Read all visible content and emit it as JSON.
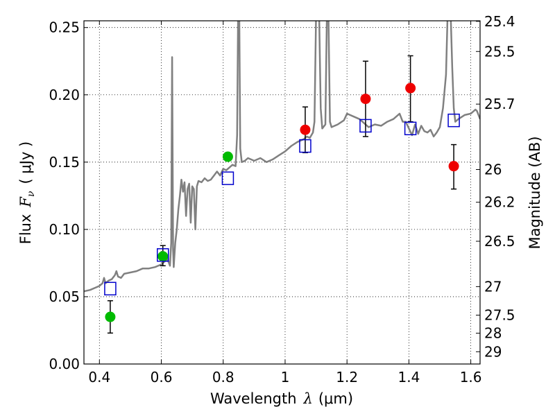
{
  "chart_data": {
    "type": "scatter",
    "xlabel_text": "Wavelength",
    "xlabel_symbol": "λ",
    "xlabel_unit": "(μm)",
    "ylabel_text": "Flux",
    "ylabel_symbol": "F",
    "ylabel_sub": "ν",
    "ylabel_unit": "( μJy )",
    "y2label": "Magnitude (AB)",
    "xlim": [
      0.35,
      1.63
    ],
    "ylim": [
      0.0,
      0.255
    ],
    "xticks": [
      {
        "value": 0.4,
        "label": "0.4"
      },
      {
        "value": 0.6,
        "label": "0.6"
      },
      {
        "value": 0.8,
        "label": "0.8"
      },
      {
        "value": 1.0,
        "label": "1"
      },
      {
        "value": 1.2,
        "label": "1.2"
      },
      {
        "value": 1.4,
        "label": "1.4"
      },
      {
        "value": 1.6,
        "label": "1.6"
      }
    ],
    "yticks": [
      {
        "value": 0.0,
        "label": "0.00"
      },
      {
        "value": 0.05,
        "label": "0.05"
      },
      {
        "value": 0.1,
        "label": "0.10"
      },
      {
        "value": 0.15,
        "label": "0.15"
      },
      {
        "value": 0.2,
        "label": "0.20"
      },
      {
        "value": 0.25,
        "label": "0.25"
      }
    ],
    "y2ticks": [
      {
        "flux": 0.2546,
        "label": "25.4"
      },
      {
        "flux": 0.2322,
        "label": "25.5"
      },
      {
        "flux": 0.1931,
        "label": "25.7"
      },
      {
        "flux": 0.1445,
        "label": "26"
      },
      {
        "flux": 0.1202,
        "label": "26.2"
      },
      {
        "flux": 0.0912,
        "label": "26.5"
      },
      {
        "flux": 0.0575,
        "label": "27"
      },
      {
        "flux": 0.0363,
        "label": "27.5"
      },
      {
        "flux": 0.0229,
        "label": "28"
      },
      {
        "flux": 0.0091,
        "label": "29"
      }
    ],
    "colors": {
      "spectrum": "#808080",
      "green": "#00bb00",
      "red": "#ee0000",
      "model": "#0000cc",
      "error": "#000000"
    },
    "spectrum": [
      [
        0.35,
        0.054
      ],
      [
        0.37,
        0.055
      ],
      [
        0.39,
        0.057
      ],
      [
        0.4,
        0.058
      ],
      [
        0.41,
        0.06
      ],
      [
        0.415,
        0.064
      ],
      [
        0.42,
        0.06
      ],
      [
        0.43,
        0.062
      ],
      [
        0.44,
        0.063
      ],
      [
        0.45,
        0.066
      ],
      [
        0.455,
        0.069
      ],
      [
        0.46,
        0.065
      ],
      [
        0.47,
        0.064
      ],
      [
        0.48,
        0.067
      ],
      [
        0.5,
        0.068
      ],
      [
        0.52,
        0.069
      ],
      [
        0.54,
        0.071
      ],
      [
        0.56,
        0.071
      ],
      [
        0.58,
        0.072
      ],
      [
        0.6,
        0.074
      ],
      [
        0.62,
        0.078
      ],
      [
        0.628,
        0.073
      ],
      [
        0.632,
        0.09
      ],
      [
        0.635,
        0.228
      ],
      [
        0.638,
        0.085
      ],
      [
        0.64,
        0.072
      ],
      [
        0.645,
        0.09
      ],
      [
        0.65,
        0.1
      ],
      [
        0.655,
        0.115
      ],
      [
        0.66,
        0.125
      ],
      [
        0.665,
        0.137
      ],
      [
        0.67,
        0.128
      ],
      [
        0.675,
        0.135
      ],
      [
        0.68,
        0.11
      ],
      [
        0.685,
        0.13
      ],
      [
        0.69,
        0.134
      ],
      [
        0.695,
        0.105
      ],
      [
        0.7,
        0.132
      ],
      [
        0.705,
        0.13
      ],
      [
        0.71,
        0.1
      ],
      [
        0.715,
        0.132
      ],
      [
        0.72,
        0.136
      ],
      [
        0.73,
        0.135
      ],
      [
        0.74,
        0.138
      ],
      [
        0.75,
        0.136
      ],
      [
        0.76,
        0.137
      ],
      [
        0.77,
        0.14
      ],
      [
        0.78,
        0.143
      ],
      [
        0.79,
        0.14
      ],
      [
        0.8,
        0.145
      ],
      [
        0.81,
        0.144
      ],
      [
        0.82,
        0.146
      ],
      [
        0.83,
        0.148
      ],
      [
        0.84,
        0.147
      ],
      [
        0.845,
        0.17
      ],
      [
        0.848,
        0.26
      ],
      [
        0.852,
        0.26
      ],
      [
        0.855,
        0.16
      ],
      [
        0.86,
        0.15
      ],
      [
        0.87,
        0.151
      ],
      [
        0.88,
        0.153
      ],
      [
        0.9,
        0.151
      ],
      [
        0.92,
        0.153
      ],
      [
        0.94,
        0.15
      ],
      [
        0.96,
        0.152
      ],
      [
        0.98,
        0.155
      ],
      [
        1.0,
        0.158
      ],
      [
        1.02,
        0.162
      ],
      [
        1.04,
        0.165
      ],
      [
        1.06,
        0.167
      ],
      [
        1.07,
        0.169
      ],
      [
        1.08,
        0.168
      ],
      [
        1.09,
        0.172
      ],
      [
        1.095,
        0.18
      ],
      [
        1.1,
        0.26
      ],
      [
        1.11,
        0.26
      ],
      [
        1.115,
        0.19
      ],
      [
        1.12,
        0.175
      ],
      [
        1.13,
        0.178
      ],
      [
        1.135,
        0.26
      ],
      [
        1.14,
        0.26
      ],
      [
        1.145,
        0.18
      ],
      [
        1.15,
        0.176
      ],
      [
        1.17,
        0.178
      ],
      [
        1.19,
        0.181
      ],
      [
        1.2,
        0.186
      ],
      [
        1.22,
        0.184
      ],
      [
        1.24,
        0.182
      ],
      [
        1.25,
        0.18
      ],
      [
        1.27,
        0.176
      ],
      [
        1.29,
        0.178
      ],
      [
        1.31,
        0.177
      ],
      [
        1.33,
        0.18
      ],
      [
        1.35,
        0.182
      ],
      [
        1.37,
        0.186
      ],
      [
        1.38,
        0.18
      ],
      [
        1.39,
        0.18
      ],
      [
        1.4,
        0.175
      ],
      [
        1.41,
        0.17
      ],
      [
        1.42,
        0.178
      ],
      [
        1.43,
        0.171
      ],
      [
        1.44,
        0.177
      ],
      [
        1.45,
        0.173
      ],
      [
        1.46,
        0.172
      ],
      [
        1.47,
        0.174
      ],
      [
        1.48,
        0.169
      ],
      [
        1.49,
        0.172
      ],
      [
        1.5,
        0.176
      ],
      [
        1.51,
        0.19
      ],
      [
        1.52,
        0.215
      ],
      [
        1.525,
        0.26
      ],
      [
        1.535,
        0.26
      ],
      [
        1.54,
        0.22
      ],
      [
        1.545,
        0.19
      ],
      [
        1.55,
        0.18
      ],
      [
        1.56,
        0.182
      ],
      [
        1.58,
        0.185
      ],
      [
        1.6,
        0.186
      ],
      [
        1.615,
        0.189
      ],
      [
        1.62,
        0.188
      ],
      [
        1.63,
        0.182
      ]
    ],
    "series": [
      {
        "name": "green",
        "points": [
          {
            "x": 0.435,
            "y": 0.035,
            "err": [
              0.023,
              0.047
            ]
          },
          {
            "x": 0.605,
            "y": 0.08,
            "err": [
              0.073,
              0.088
            ]
          },
          {
            "x": 0.815,
            "y": 0.154,
            "err": null
          }
        ]
      },
      {
        "name": "red",
        "points": [
          {
            "x": 1.065,
            "y": 0.174,
            "err": [
              0.157,
              0.191
            ]
          },
          {
            "x": 1.26,
            "y": 0.197,
            "err": [
              0.169,
              0.225
            ]
          },
          {
            "x": 1.405,
            "y": 0.205,
            "err": [
              0.18,
              0.229
            ]
          },
          {
            "x": 1.545,
            "y": 0.147,
            "err": [
              0.13,
              0.163
            ]
          }
        ]
      },
      {
        "name": "model",
        "points": [
          {
            "x": 0.435,
            "y": 0.056
          },
          {
            "x": 0.605,
            "y": 0.081
          },
          {
            "x": 0.815,
            "y": 0.138
          },
          {
            "x": 1.065,
            "y": 0.162
          },
          {
            "x": 1.26,
            "y": 0.177
          },
          {
            "x": 1.405,
            "y": 0.175
          },
          {
            "x": 1.545,
            "y": 0.181
          }
        ]
      }
    ]
  }
}
